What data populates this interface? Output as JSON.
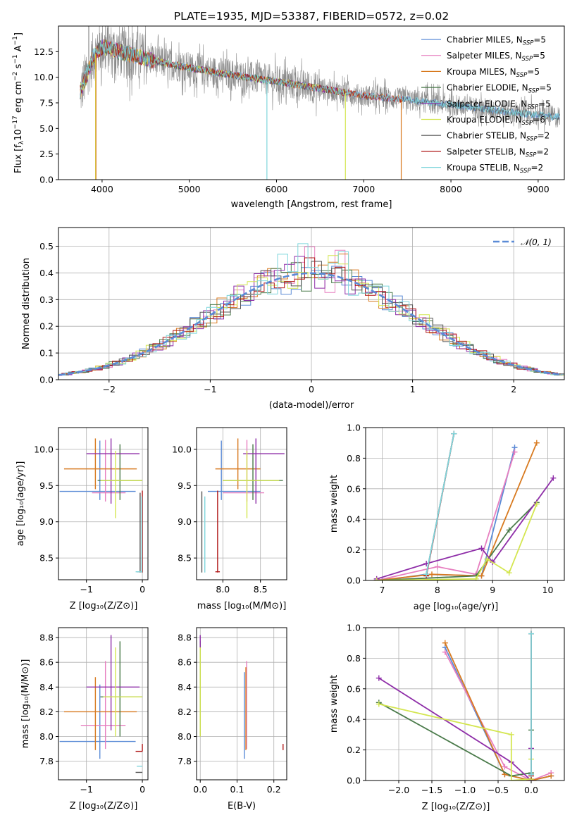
{
  "chart_data": [
    {
      "id": "spectrum",
      "type": "line",
      "title": "PLATE=1935, MJD=53387, FIBERID=0572, z=0.02",
      "xlabel": "wavelength [Angstrom, rest frame]",
      "ylabel": "Flux [fλ10⁻¹⁷ erg cm⁻² s⁻¹ A⁻¹]",
      "xlim": [
        3500,
        9300
      ],
      "ylim": [
        0,
        15
      ],
      "xticks": [
        4000,
        5000,
        6000,
        7000,
        8000,
        9000
      ],
      "yticks": [
        0.0,
        2.5,
        5.0,
        7.5,
        10.0,
        12.5
      ],
      "grid": false,
      "legend_position": "upper right",
      "series": [
        {
          "name": "Chabrier MILES, N_SSP=5",
          "color": "#5b8bd6"
        },
        {
          "name": "Salpeter MILES, N_SSP=5",
          "color": "#e77fc0"
        },
        {
          "name": "Kroupa MILES, N_SSP=5",
          "color": "#d87a20"
        },
        {
          "name": "Chabrier ELODIE, N_SSP=5",
          "color": "#4a7a4a"
        },
        {
          "name": "Salpeter ELODIE, N_SSP=5",
          "color": "#8e2da8"
        },
        {
          "name": "Kroupa ELODIE, N_SSP=6",
          "color": "#d4e650"
        },
        {
          "name": "Chabrier STELIB, N_SSP=2",
          "color": "#555555"
        },
        {
          "name": "Salpeter STELIB, N_SSP=2",
          "color": "#b01818"
        },
        {
          "name": "Kroupa STELIB, N_SSP=2",
          "color": "#7fd6dc"
        }
      ],
      "data_continuum": {
        "x": [
          3750,
          3900,
          4000,
          4200,
          4500,
          5000,
          5500,
          6000,
          6500,
          7000,
          7500,
          8000,
          8500,
          9000,
          9250
        ],
        "y": [
          8.5,
          12.0,
          13.0,
          12.5,
          11.8,
          10.9,
          10.2,
          9.6,
          8.9,
          8.2,
          7.8,
          7.3,
          6.8,
          6.3,
          6.1
        ]
      }
    },
    {
      "id": "residuals",
      "type": "line",
      "title": "",
      "xlabel": "(data-model)/error",
      "ylabel": "Normed distribution",
      "xlim": [
        -2.5,
        2.5
      ],
      "ylim": [
        0,
        0.57
      ],
      "xticks": [
        -2,
        -1,
        0,
        1,
        2
      ],
      "yticks": [
        0.0,
        0.1,
        0.2,
        0.3,
        0.4,
        0.5
      ],
      "grid": true,
      "legend_position": "upper right",
      "series": [
        {
          "name": "𝒩(0, 1)",
          "color": "#5b8bd6",
          "style": "dashed"
        }
      ]
    },
    {
      "id": "age-vs-z",
      "type": "scatter",
      "xlabel": "Z [log₁₀(Z/Z⊙)]",
      "ylabel": "age  [log₁₀(age/yr)]",
      "xlim": [
        -1.5,
        0.1
      ],
      "ylim": [
        8.2,
        10.3
      ],
      "xticks": [
        -1,
        0
      ],
      "yticks": [
        8.5,
        9.0,
        9.5,
        10.0
      ],
      "grid": true
    },
    {
      "id": "age-vs-mass",
      "type": "scatter",
      "xlabel": "mass [log₁₀(M/M⊙)]",
      "xlim": [
        7.65,
        8.85
      ],
      "ylim": [
        8.2,
        10.3
      ],
      "xticks": [
        8.0,
        8.5
      ],
      "yticks": [
        8.5,
        9.0,
        9.5,
        10.0
      ],
      "grid": true
    },
    {
      "id": "weight-vs-age",
      "type": "line",
      "xlabel": "age  [log₁₀(age/yr)]",
      "ylabel": "mass weight",
      "xlim": [
        6.7,
        10.3
      ],
      "ylim": [
        0,
        1
      ],
      "xticks": [
        7,
        8,
        9,
        10
      ],
      "yticks": [
        0.0,
        0.2,
        0.4,
        0.6,
        0.8,
        1.0
      ],
      "grid": true,
      "series": [
        {
          "name": "Chabrier MILES",
          "x": [
            7.0,
            7.8,
            8.8,
            9.4
          ],
          "y": [
            0.0,
            0.04,
            0.03,
            0.87
          ]
        },
        {
          "name": "Salpeter MILES",
          "x": [
            6.9,
            8.0,
            8.7,
            9.4
          ],
          "y": [
            0.0,
            0.09,
            0.04,
            0.84
          ]
        },
        {
          "name": "Kroupa MILES",
          "x": [
            6.9,
            7.9,
            8.8,
            9.8
          ],
          "y": [
            0.0,
            0.04,
            0.03,
            0.9
          ]
        },
        {
          "name": "Chabrier ELODIE",
          "x": [
            6.9,
            8.7,
            9.3,
            9.8
          ],
          "y": [
            0.0,
            0.03,
            0.33,
            0.51
          ]
        },
        {
          "name": "Salpeter ELODIE",
          "x": [
            6.9,
            7.8,
            8.8,
            9.0,
            10.1
          ],
          "y": [
            0.01,
            0.11,
            0.21,
            0.12,
            0.67
          ]
        },
        {
          "name": "Kroupa ELODIE",
          "x": [
            6.9,
            8.7,
            8.9,
            9.3,
            9.8
          ],
          "y": [
            0.0,
            0.01,
            0.14,
            0.05,
            0.5
          ]
        },
        {
          "name": "Chabrier STELIB",
          "x": [
            7.8,
            8.3
          ],
          "y": [
            0.04,
            0.96
          ]
        },
        {
          "name": "Salpeter STELIB",
          "x": [
            7.8,
            8.3
          ],
          "y": [
            0.03,
            0.96
          ]
        },
        {
          "name": "Kroupa STELIB",
          "x": [
            7.8,
            8.3
          ],
          "y": [
            0.04,
            0.96
          ]
        }
      ]
    },
    {
      "id": "mass-vs-z",
      "type": "scatter",
      "xlabel": "Z [log₁₀(Z/Z⊙)]",
      "ylabel": "mass [log₁₀(M/M⊙)]",
      "xlim": [
        -1.5,
        0.1
      ],
      "ylim": [
        7.65,
        8.88
      ],
      "xticks": [
        -1,
        0
      ],
      "yticks": [
        7.8,
        8.0,
        8.2,
        8.4,
        8.6,
        8.8
      ],
      "grid": true
    },
    {
      "id": "mass-vs-ebv",
      "type": "scatter",
      "xlabel": "E(B-V)",
      "xlim": [
        -0.01,
        0.235
      ],
      "ylim": [
        7.65,
        8.88
      ],
      "xticks": [
        0.0,
        0.1,
        0.2
      ],
      "yticks": [
        7.8,
        8.0,
        8.2,
        8.4,
        8.6,
        8.8
      ],
      "grid": true
    },
    {
      "id": "weight-vs-z",
      "type": "line",
      "xlabel": "Z [log₁₀(Z/Z⊙)]",
      "ylabel": "mass weight",
      "xlim": [
        -2.5,
        0.5
      ],
      "ylim": [
        0,
        1
      ],
      "xticks": [
        -2.0,
        -1.5,
        -1.0,
        -0.5,
        0.0
      ],
      "yticks": [
        0.0,
        0.2,
        0.4,
        0.6,
        0.8,
        1.0
      ],
      "grid": true,
      "series": [
        {
          "name": "Chabrier MILES",
          "x": [
            -1.3,
            -0.4,
            0.0,
            0.3
          ],
          "y": [
            0.87,
            0.04,
            0.0,
            0.03
          ]
        },
        {
          "name": "Salpeter MILES",
          "x": [
            -1.3,
            -0.4,
            0.0,
            0.3
          ],
          "y": [
            0.84,
            0.09,
            0.0,
            0.05
          ]
        },
        {
          "name": "Kroupa MILES",
          "x": [
            -1.3,
            -0.4,
            0.0,
            0.3
          ],
          "y": [
            0.9,
            0.04,
            0.0,
            0.03
          ]
        },
        {
          "name": "Chabrier ELODIE",
          "x": [
            -2.3,
            -0.3,
            0.0,
            0.0
          ],
          "y": [
            0.51,
            0.03,
            0.05,
            0.33
          ]
        },
        {
          "name": "Salpeter ELODIE",
          "x": [
            -2.3,
            -0.3,
            0.0,
            0.0
          ],
          "y": [
            0.67,
            0.12,
            0.0,
            0.21
          ]
        },
        {
          "name": "Kroupa ELODIE",
          "x": [
            -2.3,
            -0.3,
            -0.3,
            0.0,
            0.0
          ],
          "y": [
            0.5,
            0.3,
            0.0,
            0.01,
            0.14
          ]
        },
        {
          "name": "Chabrier STELIB",
          "x": [
            0.0,
            0.0
          ],
          "y": [
            0.04,
            0.96
          ]
        },
        {
          "name": "Salpeter STELIB",
          "x": [
            0.0,
            0.0
          ],
          "y": [
            0.03,
            0.96
          ]
        },
        {
          "name": "Kroupa STELIB",
          "x": [
            0.0,
            0.0
          ],
          "y": [
            0.04,
            0.96
          ]
        }
      ]
    }
  ]
}
